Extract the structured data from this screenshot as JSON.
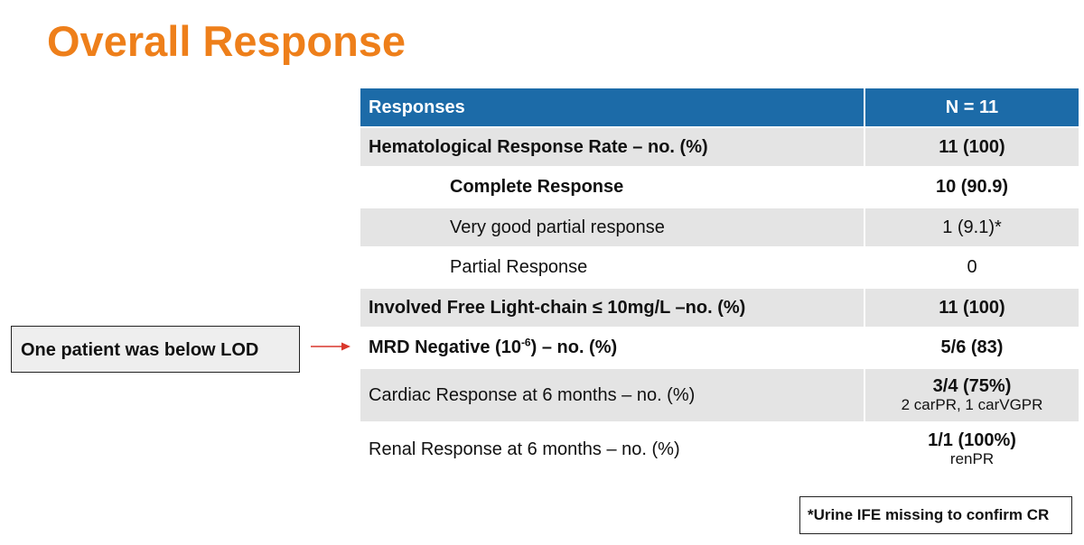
{
  "title": "Overall Response",
  "table": {
    "header": {
      "label": "Responses",
      "value": "N = 11"
    },
    "rows": [
      {
        "label": "Hematological Response Rate – no. (%)",
        "value": "11 (100)"
      },
      {
        "label": "Complete Response",
        "value": "10 (90.9)"
      },
      {
        "label": "Very good partial response",
        "value": "1 (9.1)*"
      },
      {
        "label": "Partial Response",
        "value": "0"
      },
      {
        "label": "Involved Free Light-chain ≤ 10mg/L –no. (%)",
        "value": "11 (100)"
      },
      {
        "label_pre": "MRD Negative (10",
        "label_sup": "-6",
        "label_post": ") – no. (%)",
        "value": "5/6 (83)"
      },
      {
        "label": "Cardiac Response at 6 months – no. (%)",
        "value": "3/4 (75%)",
        "value_sub": "2 carPR, 1 carVGPR"
      },
      {
        "label": "Renal Response at 6 months – no. (%)",
        "value": "1/1 (100%)",
        "value_sub": "renPR"
      }
    ]
  },
  "callout": "One patient was below LOD",
  "footnote": "*Urine IFE missing to confirm CR",
  "colors": {
    "title": "#ee7f1a",
    "header_bg": "#1c6ba8",
    "row_shade": "#e4e4e4",
    "arrow": "#d9372b"
  }
}
